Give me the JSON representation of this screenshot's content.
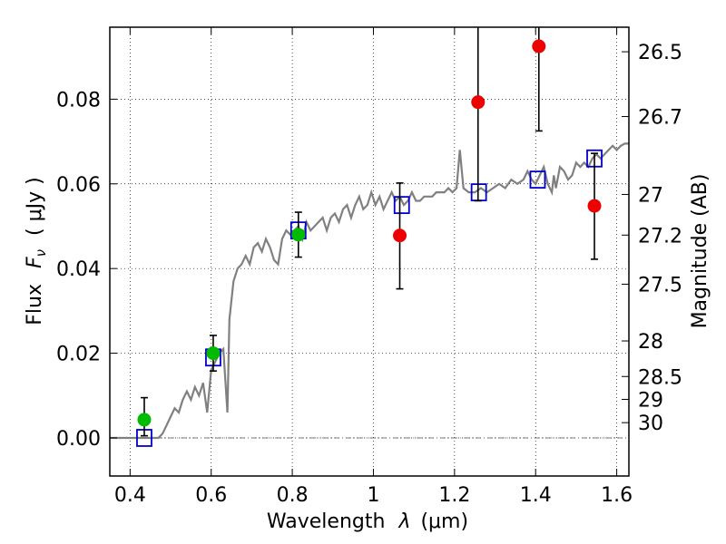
{
  "chart_data": {
    "type": "scatter",
    "xlabel_prefix": "Wavelength",
    "xlabel_symbol": "λ",
    "xlabel_unit": "(μm)",
    "ylabel_prefix": "Flux",
    "ylabel_symbol": "F",
    "ylabel_subscript": "ν",
    "ylabel_unit": "( μJy )",
    "y2label": "Magnitude (AB)",
    "xlim": [
      0.35,
      1.63
    ],
    "ylim": [
      -0.009,
      0.097
    ],
    "grid": true,
    "x_ticks": [
      {
        "value": 0.4,
        "label": "0.4"
      },
      {
        "value": 0.6,
        "label": "0.6"
      },
      {
        "value": 0.8,
        "label": "0.8"
      },
      {
        "value": 1.0,
        "label": "1"
      },
      {
        "value": 1.2,
        "label": "1.2"
      },
      {
        "value": 1.4,
        "label": "1.4"
      },
      {
        "value": 1.6,
        "label": "1.6"
      }
    ],
    "y_ticks": [
      {
        "value": 0.0,
        "label": "0.00"
      },
      {
        "value": 0.02,
        "label": "0.02"
      },
      {
        "value": 0.04,
        "label": "0.04"
      },
      {
        "value": 0.06,
        "label": "0.06"
      },
      {
        "value": 0.08,
        "label": "0.08"
      }
    ],
    "magnitude_ticks": [
      {
        "label": "26.5",
        "flux": 0.0912
      },
      {
        "label": "26.7",
        "flux": 0.0759
      },
      {
        "label": "27",
        "flux": 0.0575
      },
      {
        "label": "27.2",
        "flux": 0.0479
      },
      {
        "label": "27.5",
        "flux": 0.0363
      },
      {
        "label": "28",
        "flux": 0.0229
      },
      {
        "label": "28.5",
        "flux": 0.0145
      },
      {
        "label": "29",
        "flux": 0.0091
      },
      {
        "label": "30",
        "flux": 0.0036
      }
    ],
    "series": [
      {
        "kind": "line",
        "color": "#808080",
        "points": [
          [
            0.35,
            0.0
          ],
          [
            0.46,
            0.0
          ],
          [
            0.47,
            0.0
          ],
          [
            0.48,
            0.001
          ],
          [
            0.49,
            0.003
          ],
          [
            0.5,
            0.005
          ],
          [
            0.51,
            0.007
          ],
          [
            0.52,
            0.006
          ],
          [
            0.53,
            0.009
          ],
          [
            0.54,
            0.011
          ],
          [
            0.55,
            0.009
          ],
          [
            0.56,
            0.012
          ],
          [
            0.57,
            0.01
          ],
          [
            0.58,
            0.013
          ],
          [
            0.59,
            0.006
          ],
          [
            0.6,
            0.016
          ],
          [
            0.61,
            0.018
          ],
          [
            0.62,
            0.02
          ],
          [
            0.63,
            0.021
          ],
          [
            0.64,
            0.006
          ],
          [
            0.645,
            0.028
          ],
          [
            0.655,
            0.037
          ],
          [
            0.665,
            0.04
          ],
          [
            0.675,
            0.041
          ],
          [
            0.685,
            0.043
          ],
          [
            0.695,
            0.041
          ],
          [
            0.705,
            0.045
          ],
          [
            0.715,
            0.046
          ],
          [
            0.725,
            0.044
          ],
          [
            0.735,
            0.047
          ],
          [
            0.745,
            0.045
          ],
          [
            0.755,
            0.042
          ],
          [
            0.765,
            0.041
          ],
          [
            0.775,
            0.047
          ],
          [
            0.785,
            0.049
          ],
          [
            0.795,
            0.048
          ],
          [
            0.805,
            0.049
          ],
          [
            0.815,
            0.05
          ],
          [
            0.825,
            0.047
          ],
          [
            0.835,
            0.051
          ],
          [
            0.845,
            0.049
          ],
          [
            0.855,
            0.05
          ],
          [
            0.865,
            0.051
          ],
          [
            0.875,
            0.052
          ],
          [
            0.885,
            0.049
          ],
          [
            0.895,
            0.052
          ],
          [
            0.905,
            0.053
          ],
          [
            0.915,
            0.051
          ],
          [
            0.925,
            0.054
          ],
          [
            0.935,
            0.055
          ],
          [
            0.945,
            0.052
          ],
          [
            0.955,
            0.055
          ],
          [
            0.965,
            0.057
          ],
          [
            0.975,
            0.054
          ],
          [
            0.985,
            0.055
          ],
          [
            0.995,
            0.058
          ],
          [
            1.005,
            0.055
          ],
          [
            1.015,
            0.057
          ],
          [
            1.025,
            0.054
          ],
          [
            1.035,
            0.056
          ],
          [
            1.045,
            0.058
          ],
          [
            1.055,
            0.056
          ],
          [
            1.065,
            0.057
          ],
          [
            1.075,
            0.055
          ],
          [
            1.085,
            0.056
          ],
          [
            1.095,
            0.058
          ],
          [
            1.105,
            0.056
          ],
          [
            1.115,
            0.056
          ],
          [
            1.125,
            0.057
          ],
          [
            1.135,
            0.057
          ],
          [
            1.145,
            0.057
          ],
          [
            1.155,
            0.058
          ],
          [
            1.165,
            0.058
          ],
          [
            1.175,
            0.058
          ],
          [
            1.185,
            0.059
          ],
          [
            1.195,
            0.058
          ],
          [
            1.205,
            0.059
          ],
          [
            1.213,
            0.068
          ],
          [
            1.222,
            0.059
          ],
          [
            1.235,
            0.058
          ],
          [
            1.25,
            0.058
          ],
          [
            1.265,
            0.059
          ],
          [
            1.28,
            0.058
          ],
          [
            1.295,
            0.059
          ],
          [
            1.31,
            0.06
          ],
          [
            1.325,
            0.059
          ],
          [
            1.34,
            0.061
          ],
          [
            1.355,
            0.06
          ],
          [
            1.37,
            0.061
          ],
          [
            1.38,
            0.063
          ],
          [
            1.39,
            0.061
          ],
          [
            1.4,
            0.06
          ],
          [
            1.41,
            0.062
          ],
          [
            1.42,
            0.064
          ],
          [
            1.43,
            0.06
          ],
          [
            1.44,
            0.058
          ],
          [
            1.445,
            0.062
          ],
          [
            1.45,
            0.059
          ],
          [
            1.46,
            0.064
          ],
          [
            1.47,
            0.063
          ],
          [
            1.48,
            0.061
          ],
          [
            1.49,
            0.062
          ],
          [
            1.5,
            0.065
          ],
          [
            1.51,
            0.064
          ],
          [
            1.52,
            0.065
          ],
          [
            1.53,
            0.064
          ],
          [
            1.54,
            0.066
          ],
          [
            1.55,
            0.067
          ],
          [
            1.56,
            0.066
          ],
          [
            1.57,
            0.067
          ],
          [
            1.58,
            0.068
          ],
          [
            1.59,
            0.069
          ],
          [
            1.6,
            0.068
          ],
          [
            1.61,
            0.069
          ],
          [
            1.62,
            0.0695
          ],
          [
            1.63,
            0.0695
          ]
        ]
      },
      {
        "kind": "squares",
        "color": "#0000cc",
        "points": [
          [
            0.435,
            0.0
          ],
          [
            0.605,
            0.019
          ],
          [
            0.815,
            0.049
          ],
          [
            1.07,
            0.055
          ],
          [
            1.26,
            0.058
          ],
          [
            1.405,
            0.061
          ],
          [
            1.545,
            0.066
          ]
        ]
      },
      {
        "kind": "circles",
        "color": "#00bb00",
        "points": [
          {
            "x": 0.435,
            "y": 0.0043,
            "err_low": 0.0005,
            "err_high": 0.0095
          },
          {
            "x": 0.605,
            "y": 0.02,
            "err_low": 0.0158,
            "err_high": 0.0242
          },
          {
            "x": 0.815,
            "y": 0.048,
            "err_low": 0.0427,
            "err_high": 0.0533
          }
        ]
      },
      {
        "kind": "circles",
        "color": "#ee0000",
        "points": [
          {
            "x": 1.065,
            "y": 0.0478,
            "err_low": 0.0352,
            "err_high": 0.0602
          },
          {
            "x": 1.258,
            "y": 0.0793,
            "err_low": 0.056,
            "err_high": 0.097
          },
          {
            "x": 1.408,
            "y": 0.0925,
            "err_low": 0.0725,
            "err_high": 0.097
          },
          {
            "x": 1.545,
            "y": 0.0548,
            "err_low": 0.0422,
            "err_high": 0.0672
          }
        ]
      }
    ]
  }
}
